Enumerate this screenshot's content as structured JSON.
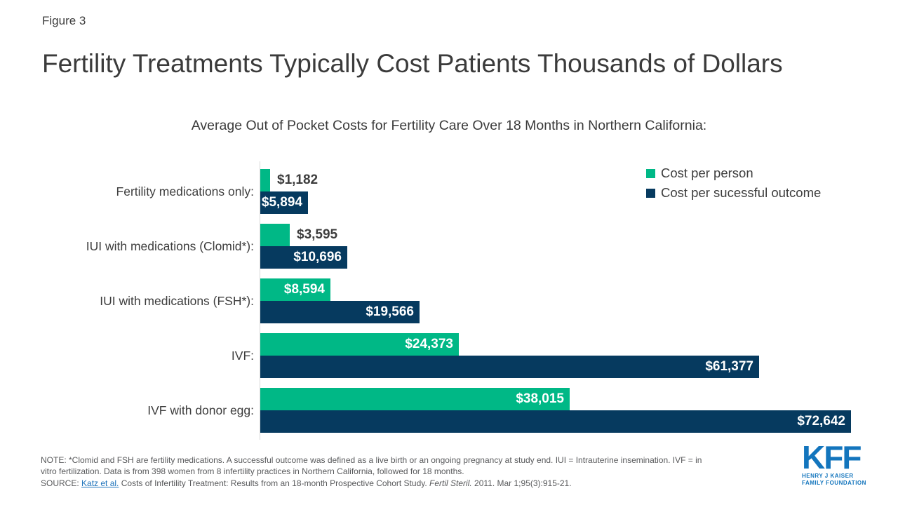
{
  "figure_label": "Figure 3",
  "title": "Fertility Treatments Typically Cost Patients Thousands of Dollars",
  "subtitle": "Average Out of Pocket Costs for Fertility Care Over 18 Months in Northern California:",
  "chart_data": {
    "type": "bar",
    "orientation": "horizontal",
    "title": "Average Out of Pocket Costs for Fertility Care Over 18 Months in Northern California:",
    "categories": [
      "Fertility medications only:",
      "IUI with medications (Clomid*):",
      "IUI with medications (FSH*):",
      "IVF:",
      "IVF with donor egg:"
    ],
    "series": [
      {
        "name": "Cost per person",
        "color": "#00B886",
        "values": [
          1182,
          3595,
          8594,
          24373,
          38015
        ],
        "labels": [
          "$1,182",
          "$3,595",
          "$8,594",
          "$24,373",
          "$38,015"
        ],
        "label_inside": [
          false,
          false,
          true,
          true,
          true
        ]
      },
      {
        "name": "Cost per sucessful outcome",
        "color": "#063A5F",
        "values": [
          5894,
          10696,
          19566,
          61377,
          72642
        ],
        "labels": [
          "$5,894",
          "$10,696",
          "$19,566",
          "$61,377",
          "$72,642"
        ],
        "label_inside": [
          true,
          true,
          true,
          true,
          true
        ]
      }
    ],
    "xlim": [
      0,
      72642
    ],
    "grid": false,
    "legend_position": "top-right",
    "value_label_color_inside": "#FFFFFF",
    "value_label_color_outside": "#3D3D3D"
  },
  "note": {
    "lines": [
      "NOTE: *Clomid and FSH are fertility medications. A successful outcome was defined as a live birth or an ongoing pregnancy at study end. IUI = Intrauterine insemination. IVF = in",
      "vitro fertilization. Data is from 398 women from 8 infertility practices in Northern California, followed for 18 months."
    ]
  },
  "source": {
    "prefix": "SOURCE: ",
    "link": "Katz et al.",
    "middle": " Costs of Infertility Treatment: Results from an 18-month Prospective Cohort Study. ",
    "journal": "Fertil Steril.",
    "suffix": " 2011. Mar 1;95(3):915-21."
  },
  "logo": {
    "text": "KFF",
    "tagline_line1": "HENRY J KAISER",
    "tagline_line2": "FAMILY FOUNDATION"
  }
}
